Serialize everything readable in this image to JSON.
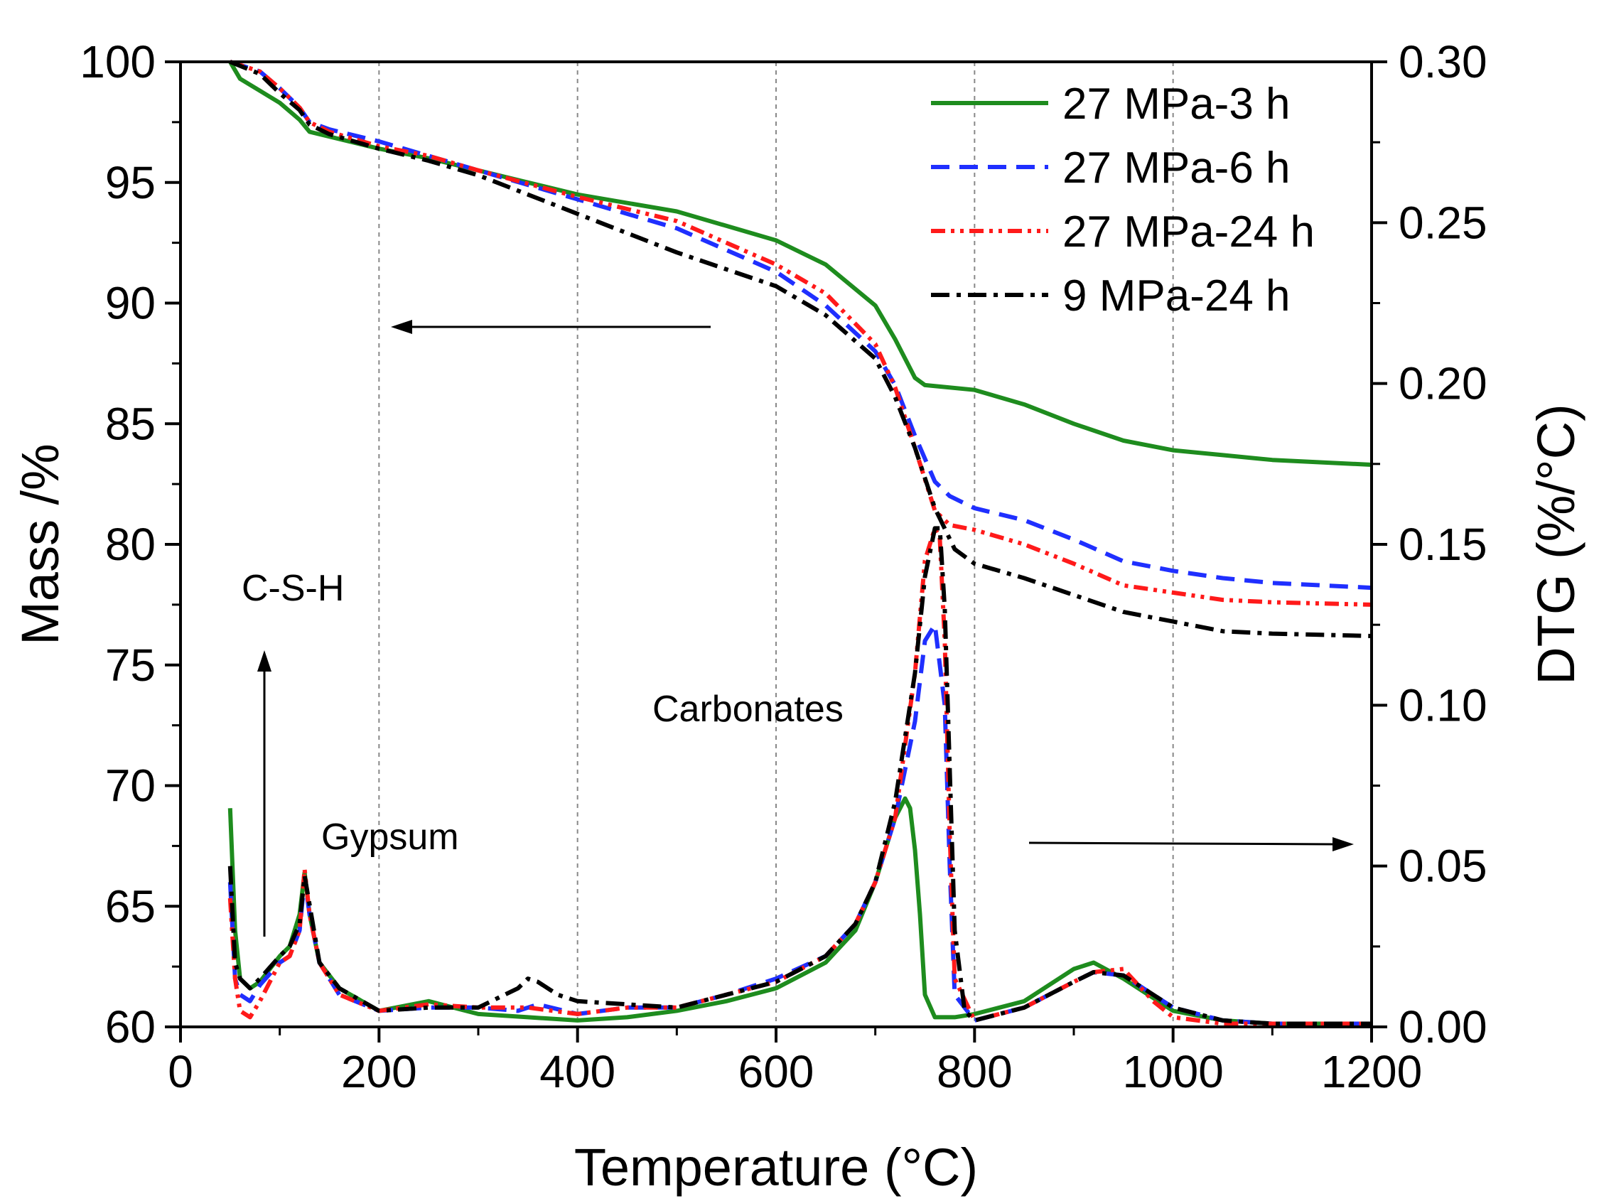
{
  "chart_data": {
    "type": "line",
    "xlabel": "Temperature (°C)",
    "ylabel_left": "Mass /%",
    "ylabel_right": "DTG (%/°C)",
    "xlim": [
      0,
      1200
    ],
    "ylim_left": [
      60,
      100
    ],
    "ylim_right": [
      0.0,
      0.3
    ],
    "x_ticks": [
      "0",
      "200",
      "400",
      "600",
      "800",
      "1000",
      "1200"
    ],
    "y_left_ticks": [
      "60",
      "65",
      "70",
      "75",
      "80",
      "85",
      "90",
      "95",
      "100"
    ],
    "y_right_ticks": [
      "0.00",
      "0.05",
      "0.10",
      "0.15",
      "0.20",
      "0.25",
      "0.30"
    ],
    "vertical_gridlines_at": [
      200,
      400,
      600,
      800,
      1000
    ],
    "legend_position": "top-right",
    "annotations": {
      "csh": "C-S-H",
      "gypsum": "Gypsum",
      "carbonates": "Carbonates"
    },
    "series": [
      {
        "name": "27 MPa-3 h",
        "color": "#1e8c1e",
        "style": "solid",
        "mass": {
          "x": [
            50,
            60,
            80,
            100,
            120,
            130,
            150,
            200,
            250,
            300,
            400,
            500,
            600,
            650,
            700,
            720,
            740,
            750,
            800,
            850,
            900,
            950,
            1000,
            1050,
            1100,
            1200
          ],
          "y": [
            100,
            99.3,
            98.8,
            98.3,
            97.6,
            97.1,
            96.9,
            96.4,
            96.0,
            95.5,
            94.5,
            93.8,
            92.6,
            91.6,
            89.9,
            88.5,
            86.9,
            86.6,
            86.4,
            85.8,
            85.0,
            84.3,
            83.9,
            83.7,
            83.5,
            83.3
          ]
        },
        "dtg": {
          "x": [
            50,
            55,
            60,
            70,
            80,
            100,
            110,
            120,
            125,
            130,
            140,
            160,
            200,
            250,
            300,
            350,
            400,
            450,
            500,
            550,
            600,
            650,
            680,
            700,
            720,
            730,
            735,
            740,
            745,
            750,
            760,
            780,
            800,
            850,
            900,
            920,
            950,
            1000,
            1050,
            1100,
            1200
          ],
          "y": [
            0.068,
            0.03,
            0.015,
            0.012,
            0.014,
            0.022,
            0.025,
            0.035,
            0.048,
            0.035,
            0.02,
            0.012,
            0.005,
            0.008,
            0.004,
            0.003,
            0.002,
            0.003,
            0.005,
            0.008,
            0.012,
            0.02,
            0.03,
            0.045,
            0.065,
            0.071,
            0.068,
            0.055,
            0.035,
            0.01,
            0.003,
            0.003,
            0.004,
            0.008,
            0.018,
            0.02,
            0.015,
            0.005,
            0.002,
            0.001,
            0.001
          ]
        }
      },
      {
        "name": "27 MPa-6 h",
        "color": "#1f2fff",
        "style": "dashed",
        "mass": {
          "x": [
            50,
            80,
            100,
            120,
            130,
            150,
            200,
            250,
            300,
            400,
            500,
            600,
            650,
            700,
            720,
            740,
            760,
            775,
            800,
            850,
            900,
            950,
            1000,
            1050,
            1100,
            1200
          ],
          "y": [
            100,
            99.6,
            98.9,
            98.1,
            97.5,
            97.2,
            96.7,
            96.1,
            95.5,
            94.3,
            93.1,
            91.3,
            89.9,
            88.0,
            86.6,
            84.5,
            82.6,
            82.0,
            81.5,
            81.0,
            80.2,
            79.3,
            78.9,
            78.6,
            78.4,
            78.2
          ]
        },
        "dtg": {
          "x": [
            50,
            55,
            60,
            70,
            80,
            100,
            110,
            120,
            125,
            130,
            140,
            160,
            200,
            250,
            300,
            340,
            360,
            400,
            450,
            500,
            550,
            600,
            650,
            680,
            700,
            720,
            740,
            750,
            760,
            770,
            775,
            780,
            800,
            850,
            900,
            920,
            950,
            1000,
            1050,
            1100,
            1200
          ],
          "y": [
            0.045,
            0.015,
            0.01,
            0.008,
            0.013,
            0.02,
            0.022,
            0.03,
            0.046,
            0.035,
            0.02,
            0.01,
            0.005,
            0.006,
            0.006,
            0.005,
            0.007,
            0.004,
            0.006,
            0.006,
            0.01,
            0.015,
            0.022,
            0.032,
            0.045,
            0.065,
            0.095,
            0.12,
            0.125,
            0.1,
            0.05,
            0.01,
            0.002,
            0.006,
            0.014,
            0.017,
            0.016,
            0.006,
            0.002,
            0.001,
            0.001
          ]
        }
      },
      {
        "name": "27 MPa-24 h",
        "color": "#ff1a1a",
        "style": "dash-dot-dot",
        "mass": {
          "x": [
            50,
            80,
            100,
            120,
            130,
            150,
            200,
            250,
            300,
            400,
            500,
            600,
            650,
            700,
            720,
            740,
            760,
            775,
            800,
            850,
            900,
            950,
            1000,
            1050,
            1100,
            1200
          ],
          "y": [
            100,
            99.6,
            98.9,
            98.1,
            97.5,
            97.1,
            96.5,
            96.1,
            95.5,
            94.4,
            93.4,
            91.6,
            90.4,
            88.3,
            86.5,
            84.0,
            81.4,
            80.8,
            80.6,
            80.0,
            79.2,
            78.3,
            78.0,
            77.7,
            77.6,
            77.5
          ]
        },
        "dtg": {
          "x": [
            50,
            55,
            60,
            70,
            80,
            100,
            110,
            120,
            125,
            130,
            140,
            160,
            200,
            250,
            300,
            350,
            400,
            450,
            500,
            550,
            600,
            650,
            680,
            700,
            720,
            740,
            750,
            760,
            765,
            770,
            775,
            780,
            800,
            850,
            900,
            920,
            950,
            980,
            1000,
            1050,
            1100,
            1200
          ],
          "y": [
            0.04,
            0.015,
            0.005,
            0.003,
            0.008,
            0.02,
            0.022,
            0.03,
            0.049,
            0.035,
            0.02,
            0.01,
            0.005,
            0.007,
            0.006,
            0.006,
            0.004,
            0.006,
            0.006,
            0.01,
            0.014,
            0.022,
            0.032,
            0.045,
            0.065,
            0.11,
            0.145,
            0.155,
            0.152,
            0.12,
            0.06,
            0.015,
            0.002,
            0.006,
            0.014,
            0.017,
            0.018,
            0.008,
            0.003,
            0.001,
            0.001,
            0.001
          ]
        }
      },
      {
        "name": "9 MPa-24 h",
        "color": "#000000",
        "style": "dash-dot",
        "mass": {
          "x": [
            50,
            80,
            100,
            120,
            130,
            150,
            200,
            250,
            300,
            400,
            500,
            600,
            650,
            700,
            720,
            740,
            760,
            780,
            800,
            850,
            900,
            950,
            1000,
            1050,
            1100,
            1200
          ],
          "y": [
            100,
            99.5,
            98.7,
            98.0,
            97.4,
            97.0,
            96.4,
            95.9,
            95.3,
            93.7,
            92.1,
            90.7,
            89.5,
            87.7,
            86.1,
            84.0,
            81.5,
            79.8,
            79.2,
            78.6,
            77.9,
            77.2,
            76.8,
            76.4,
            76.3,
            76.2
          ]
        },
        "dtg": {
          "x": [
            50,
            55,
            60,
            70,
            80,
            100,
            110,
            120,
            125,
            130,
            140,
            160,
            200,
            250,
            300,
            340,
            350,
            360,
            380,
            400,
            450,
            500,
            550,
            600,
            650,
            680,
            700,
            720,
            740,
            750,
            760,
            765,
            770,
            775,
            780,
            790,
            800,
            850,
            900,
            920,
            950,
            1000,
            1050,
            1100,
            1200
          ],
          "y": [
            0.05,
            0.02,
            0.015,
            0.012,
            0.015,
            0.022,
            0.025,
            0.032,
            0.047,
            0.038,
            0.02,
            0.012,
            0.005,
            0.006,
            0.006,
            0.012,
            0.015,
            0.014,
            0.01,
            0.008,
            0.007,
            0.006,
            0.01,
            0.014,
            0.022,
            0.032,
            0.045,
            0.07,
            0.11,
            0.14,
            0.155,
            0.155,
            0.13,
            0.08,
            0.03,
            0.005,
            0.002,
            0.006,
            0.014,
            0.017,
            0.016,
            0.006,
            0.002,
            0.001,
            0.001
          ]
        }
      }
    ]
  }
}
